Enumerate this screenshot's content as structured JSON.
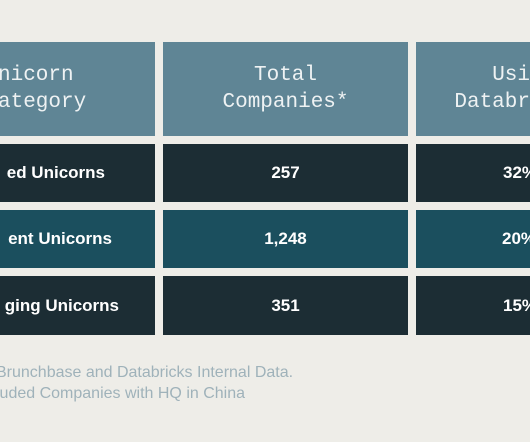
{
  "table": {
    "header": [
      [
        "nicorn",
        "ategory"
      ],
      [
        "Total",
        "Companies*"
      ],
      [
        "Usi",
        "Databr"
      ]
    ],
    "rows": [
      [
        "ed Unicorns",
        "257",
        "32%"
      ],
      [
        "ent Unicorns",
        "1,248",
        "20%"
      ],
      [
        "ging Unicorns",
        "351",
        "15%"
      ]
    ]
  },
  "footnotes": [
    "Brunchbase and Databricks Internal Data.",
    "luded Companies with HQ in China"
  ]
}
